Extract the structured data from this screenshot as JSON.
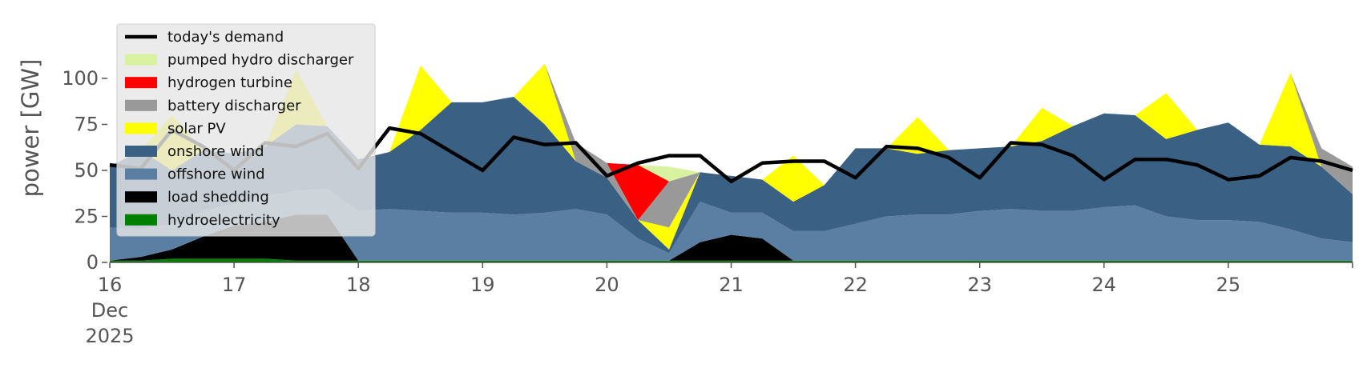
{
  "chart_data": {
    "type": "area",
    "title": "",
    "xlabel": "",
    "ylabel": "power [GW]",
    "ylim": [
      0,
      120
    ],
    "xlim": [
      "2025-12-16",
      "2025-12-26"
    ],
    "y_ticks": [
      0,
      25,
      50,
      75,
      100
    ],
    "x_ticks": [
      {
        "date": "2025-12-16",
        "label": "16",
        "sublabels": [
          "Dec",
          "2025"
        ]
      },
      {
        "date": "2025-12-17",
        "label": "17"
      },
      {
        "date": "2025-12-18",
        "label": "18"
      },
      {
        "date": "2025-12-19",
        "label": "19"
      },
      {
        "date": "2025-12-20",
        "label": "20"
      },
      {
        "date": "2025-12-21",
        "label": "21"
      },
      {
        "date": "2025-12-22",
        "label": "22"
      },
      {
        "date": "2025-12-23",
        "label": "23"
      },
      {
        "date": "2025-12-24",
        "label": "24"
      },
      {
        "date": "2025-12-25",
        "label": "25"
      }
    ],
    "grid": false,
    "legend_position": "upper-left",
    "stacked": true,
    "x": [
      "2025-12-16 00:00",
      "2025-12-16 06:00",
      "2025-12-16 12:00",
      "2025-12-16 18:00",
      "2025-12-17 00:00",
      "2025-12-17 06:00",
      "2025-12-17 12:00",
      "2025-12-17 18:00",
      "2025-12-18 00:00",
      "2025-12-18 06:00",
      "2025-12-18 12:00",
      "2025-12-18 18:00",
      "2025-12-19 00:00",
      "2025-12-19 06:00",
      "2025-12-19 12:00",
      "2025-12-19 18:00",
      "2025-12-20 00:00",
      "2025-12-20 06:00",
      "2025-12-20 12:00",
      "2025-12-20 18:00",
      "2025-12-21 00:00",
      "2025-12-21 06:00",
      "2025-12-21 12:00",
      "2025-12-21 18:00",
      "2025-12-22 00:00",
      "2025-12-22 06:00",
      "2025-12-22 12:00",
      "2025-12-22 18:00",
      "2025-12-23 00:00",
      "2025-12-23 06:00",
      "2025-12-23 12:00",
      "2025-12-23 18:00",
      "2025-12-24 00:00",
      "2025-12-24 06:00",
      "2025-12-24 12:00",
      "2025-12-24 18:00",
      "2025-12-25 00:00",
      "2025-12-25 06:00",
      "2025-12-25 12:00",
      "2025-12-25 18:00",
      "2025-12-26 00:00"
    ],
    "series": [
      {
        "name": "hydroelectricity",
        "color": "#008000",
        "values": [
          1,
          1,
          2,
          2,
          2,
          2,
          1,
          1,
          1,
          1,
          1,
          1,
          1,
          1,
          1,
          1,
          1,
          1,
          1,
          1,
          1,
          1,
          1,
          1,
          1,
          1,
          1,
          1,
          1,
          1,
          1,
          1,
          1,
          1,
          1,
          1,
          1,
          1,
          1,
          1,
          1
        ]
      },
      {
        "name": "load shedding",
        "color": "#000000",
        "values": [
          0,
          2,
          5,
          12,
          18,
          20,
          25,
          25,
          0,
          0,
          0,
          0,
          0,
          0,
          0,
          0,
          0,
          0,
          0,
          10,
          14,
          12,
          0,
          0,
          0,
          0,
          0,
          0,
          0,
          0,
          0,
          0,
          0,
          0,
          0,
          0,
          0,
          0,
          0,
          0,
          0
        ]
      },
      {
        "name": "offshore wind",
        "color": "#5b7fa3",
        "values": [
          18,
          15,
          14,
          14,
          12,
          14,
          13,
          14,
          27,
          28,
          27,
          26,
          26,
          25,
          26,
          28,
          25,
          12,
          4,
          22,
          12,
          14,
          16,
          16,
          20,
          24,
          25,
          25,
          27,
          28,
          27,
          27,
          29,
          30,
          24,
          22,
          22,
          21,
          17,
          12,
          10
        ]
      },
      {
        "name": "onshore wind",
        "color": "#3a6084",
        "values": [
          33,
          43,
          29,
          33,
          27,
          27,
          36,
          34,
          28,
          31,
          44,
          60,
          60,
          64,
          48,
          26,
          20,
          10,
          2,
          16,
          20,
          18,
          16,
          25,
          41,
          37,
          33,
          35,
          34,
          34,
          38,
          46,
          51,
          49,
          42,
          49,
          53,
          42,
          45,
          39,
          26
        ]
      },
      {
        "name": "solar PV",
        "color": "#ffff00",
        "values": [
          0,
          0,
          30,
          0,
          0,
          0,
          30,
          0,
          0,
          0,
          35,
          0,
          0,
          0,
          33,
          0,
          0,
          0,
          12,
          0,
          0,
          0,
          25,
          0,
          0,
          0,
          20,
          0,
          0,
          0,
          18,
          0,
          0,
          0,
          25,
          0,
          0,
          0,
          40,
          0,
          0
        ]
      },
      {
        "name": "battery discharger",
        "color": "#999999",
        "values": [
          0,
          0,
          0,
          0,
          0,
          0,
          0,
          0,
          0,
          0,
          0,
          0,
          0,
          0,
          0,
          10,
          8,
          0,
          25,
          0,
          0,
          0,
          0,
          0,
          0,
          0,
          0,
          0,
          0,
          0,
          0,
          0,
          0,
          0,
          0,
          0,
          0,
          0,
          0,
          10,
          15
        ]
      },
      {
        "name": "hydrogen turbine",
        "color": "#ff0000",
        "values": [
          0,
          0,
          0,
          0,
          0,
          0,
          0,
          0,
          0,
          0,
          0,
          0,
          0,
          0,
          0,
          0,
          0,
          30,
          0,
          0,
          0,
          0,
          0,
          0,
          0,
          0,
          0,
          0,
          0,
          0,
          0,
          0,
          0,
          0,
          0,
          0,
          0,
          0,
          0,
          0,
          0
        ]
      },
      {
        "name": "pumped hydro discharger",
        "color": "#d9f2a0",
        "values": [
          0,
          0,
          0,
          0,
          0,
          0,
          0,
          0,
          0,
          0,
          0,
          0,
          0,
          0,
          0,
          0,
          0,
          0,
          8,
          0,
          0,
          0,
          0,
          0,
          0,
          0,
          0,
          0,
          0,
          0,
          0,
          0,
          0,
          0,
          0,
          0,
          0,
          0,
          0,
          0,
          0
        ]
      }
    ],
    "line_series": {
      "name": "today's demand",
      "color": "#000000",
      "values": [
        53,
        51,
        72,
        63,
        50,
        65,
        63,
        70,
        51,
        73,
        70,
        60,
        50,
        68,
        64,
        65,
        47,
        54,
        58,
        58,
        44,
        54,
        55,
        55,
        46,
        63,
        62,
        57,
        46,
        65,
        64,
        58,
        45,
        56,
        56,
        53,
        45,
        47,
        57,
        55,
        50
      ]
    },
    "legend": [
      {
        "name": "today's demand",
        "color": "#000000",
        "kind": "line"
      },
      {
        "name": "pumped hydro discharger",
        "color": "#d9f2a0",
        "kind": "patch"
      },
      {
        "name": "hydrogen turbine",
        "color": "#ff0000",
        "kind": "patch"
      },
      {
        "name": "battery discharger",
        "color": "#999999",
        "kind": "patch"
      },
      {
        "name": "solar PV",
        "color": "#ffff00",
        "kind": "patch"
      },
      {
        "name": "onshore wind",
        "color": "#3a6084",
        "kind": "patch"
      },
      {
        "name": "offshore wind",
        "color": "#5b7fa3",
        "kind": "patch"
      },
      {
        "name": "load shedding",
        "color": "#000000",
        "kind": "patch"
      },
      {
        "name": "hydroelectricity",
        "color": "#008000",
        "kind": "patch"
      }
    ]
  }
}
